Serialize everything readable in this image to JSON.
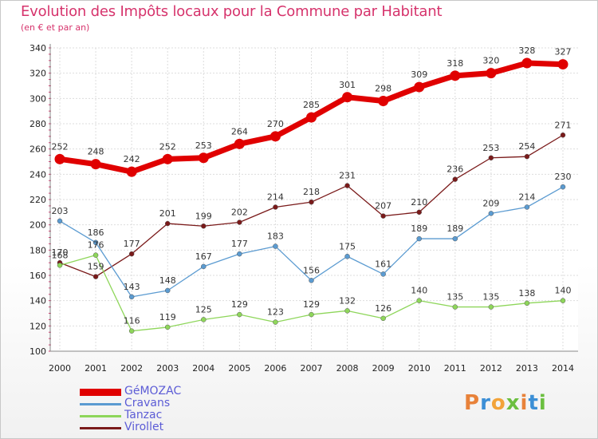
{
  "title": "Evolution des Impôts locaux pour la Commune par Habitant",
  "subtitle": "(en € et par an)",
  "logo_text": "Proxiti",
  "logo_colors": [
    "#e8823a",
    "#3c8fd6",
    "#f2a33a",
    "#6bbf3f",
    "#e8823a",
    "#3c8fd6",
    "#6bbf3f"
  ],
  "chart_data": {
    "type": "line",
    "title": "Evolution des Impôts locaux pour la Commune par Habitant",
    "subtitle": "(en € et par an)",
    "xlabel": "",
    "ylabel": "",
    "x": [
      "2000",
      "2001",
      "2002",
      "2003",
      "2004",
      "2005",
      "2006",
      "2007",
      "2008",
      "2009",
      "2010",
      "2011",
      "2012",
      "2013",
      "2014"
    ],
    "ylim": [
      100,
      340
    ],
    "yticks": [
      100,
      120,
      140,
      160,
      180,
      200,
      220,
      240,
      260,
      280,
      300,
      320,
      340
    ],
    "grid": true,
    "legend_position": "bottom-left",
    "series": [
      {
        "name": "GéMOZAC",
        "color": "#e00000",
        "values": [
          252,
          248,
          242,
          252,
          253,
          264,
          270,
          285,
          301,
          298,
          309,
          318,
          320,
          328,
          327
        ]
      },
      {
        "name": "Cravans",
        "color": "#5b9bd1",
        "values": [
          203,
          186,
          143,
          148,
          167,
          177,
          183,
          156,
          175,
          161,
          189,
          189,
          209,
          214,
          230
        ]
      },
      {
        "name": "Tanzac",
        "color": "#8ed65a",
        "values": [
          168,
          176,
          116,
          119,
          125,
          129,
          123,
          129,
          132,
          126,
          140,
          135,
          135,
          138,
          140
        ]
      },
      {
        "name": "Virollet",
        "color": "#7a1a1a",
        "values": [
          170,
          159,
          177,
          201,
          199,
          202,
          214,
          218,
          231,
          207,
          210,
          236,
          253,
          254,
          271
        ]
      }
    ]
  }
}
